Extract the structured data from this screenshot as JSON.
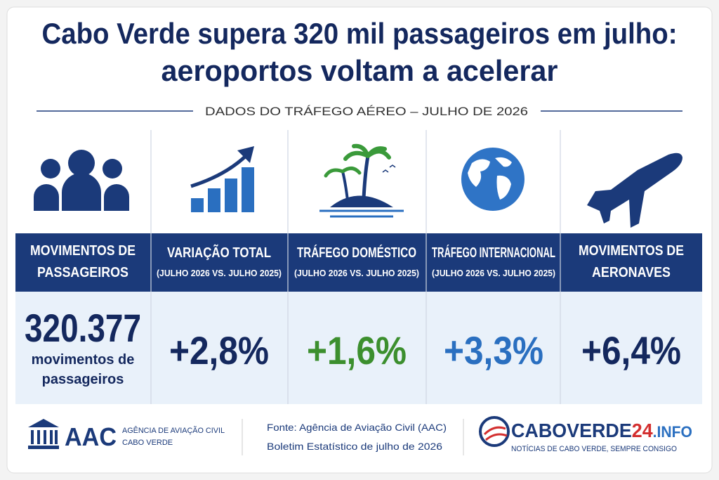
{
  "header": {
    "title": [
      "Cabo Verde supera 320 mil passageiros em julho:",
      "aeroportos voltam a acelerar"
    ],
    "subtitle": "DADOS DO TRÁFEGO AÉREO – JULHO DE 2026"
  },
  "columns": [
    {
      "title": [
        "MOVIMENTOS DE",
        "PASSAGEIROS"
      ],
      "value": "320.377",
      "caption": [
        "movimentos de",
        "passageiros"
      ]
    },
    {
      "title": [
        "VARIAÇÃO TOTAL"
      ],
      "note": "(JULHO 2026 VS. JULHO 2025)",
      "value": "+2,8%"
    },
    {
      "title": [
        "TRÁFEGO DOMÉSTICO"
      ],
      "note": "(JULHO 2026 VS. JULHO 2025)",
      "value": "+1,6%"
    },
    {
      "title": [
        "TRÁFEGO INTERNACIONAL"
      ],
      "note": "(JULHO 2026 VS. JULHO 2025)",
      "value": "+3,3%"
    },
    {
      "title": [
        "MOVIMENTOS DE",
        "AERONAVES"
      ],
      "value": "+6,4%"
    }
  ],
  "footer": {
    "aac": {
      "acronym": "AAC",
      "name": [
        "AGÊNCIA DE AVIAÇÃO CIVIL",
        "CABO VERDE"
      ]
    },
    "source": [
      "Fonte: Agência de Aviação Civil (AAC)",
      "Boletim Estatístico de julho de 2026"
    ],
    "brand": {
      "name": [
        "CABOVERDE",
        "24",
        ".INFO"
      ],
      "tagline": "NOTÍCIAS DE CABO VERDE, SEMPRE CONSIGO"
    }
  }
}
